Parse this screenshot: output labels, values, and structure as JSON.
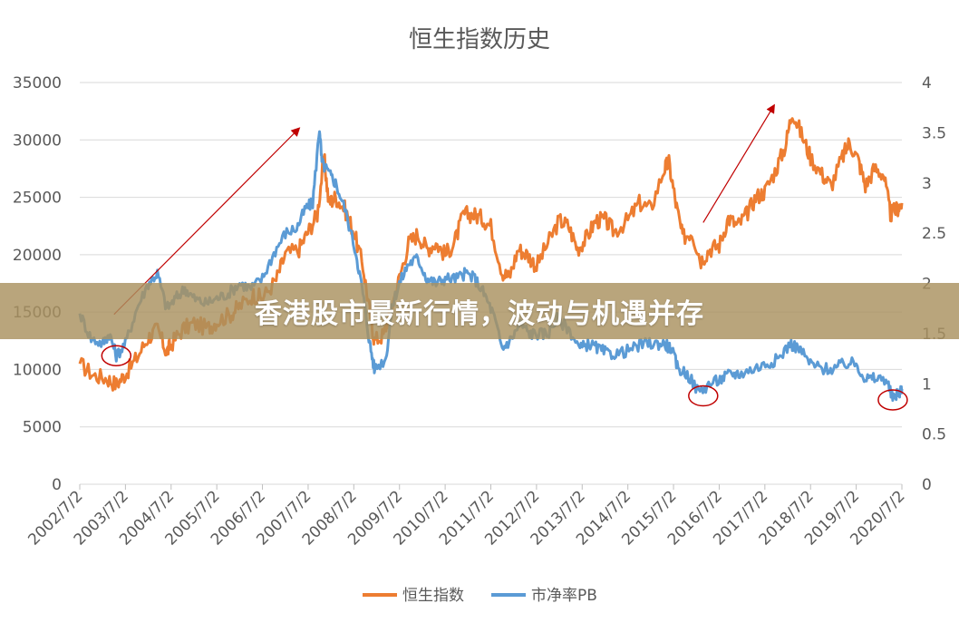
{
  "banner": {
    "text": "香港股市最新行情，波动与机遇并存"
  },
  "colors": {
    "hsi": "#ED7D31",
    "pb": "#5B9BD5",
    "annotation": "#C00000",
    "grid": "#D9D9D9"
  },
  "chart_data": {
    "type": "line",
    "title": "恒生指数历史",
    "x_labels": [
      "2002/7/2",
      "2003/7/2",
      "2004/7/2",
      "2005/7/2",
      "2006/7/2",
      "2007/7/2",
      "2008/7/2",
      "2009/7/2",
      "2010/7/2",
      "2011/7/2",
      "2012/7/2",
      "2013/7/2",
      "2014/7/2",
      "2015/7/2",
      "2016/7/2",
      "2017/7/2",
      "2018/7/2",
      "2019/7/2",
      "2020/7/2"
    ],
    "y_left": {
      "ticks": [
        "0",
        "5000",
        "10000",
        "15000",
        "20000",
        "25000",
        "30000",
        "35000"
      ],
      "min": 0,
      "max": 35000
    },
    "y_right": {
      "ticks": [
        "0",
        "0.5",
        "1",
        "1.5",
        "2",
        "2.5",
        "3",
        "3.5",
        "4"
      ],
      "min": 0,
      "max": 4
    },
    "legend_position": "bottom",
    "grid": true,
    "series": [
      {
        "name": "恒生指数",
        "axis": "left",
        "color": "#ED7D31",
        "points": [
          [
            2002.5,
            10500
          ],
          [
            2002.8,
            9500
          ],
          [
            2003.1,
            9200
          ],
          [
            2003.3,
            8700
          ],
          [
            2003.5,
            9600
          ],
          [
            2003.75,
            11000
          ],
          [
            2004.0,
            12800
          ],
          [
            2004.2,
            13500
          ],
          [
            2004.4,
            11500
          ],
          [
            2004.5,
            12200
          ],
          [
            2004.75,
            13500
          ],
          [
            2005.0,
            14000
          ],
          [
            2005.3,
            13600
          ],
          [
            2005.5,
            14200
          ],
          [
            2005.8,
            14800
          ],
          [
            2006.0,
            15500
          ],
          [
            2006.3,
            16500
          ],
          [
            2006.5,
            16200
          ],
          [
            2006.8,
            17800
          ],
          [
            2007.0,
            20000
          ],
          [
            2007.3,
            20500
          ],
          [
            2007.5,
            22000
          ],
          [
            2007.7,
            23500
          ],
          [
            2007.85,
            28500
          ],
          [
            2007.95,
            24500
          ],
          [
            2008.1,
            25000
          ],
          [
            2008.3,
            24000
          ],
          [
            2008.5,
            22000
          ],
          [
            2008.7,
            19000
          ],
          [
            2008.85,
            15000
          ],
          [
            2008.95,
            12500
          ],
          [
            2009.15,
            13000
          ],
          [
            2009.3,
            15000
          ],
          [
            2009.5,
            18000
          ],
          [
            2009.7,
            21000
          ],
          [
            2009.9,
            21800
          ],
          [
            2010.1,
            20500
          ],
          [
            2010.3,
            21000
          ],
          [
            2010.5,
            20000
          ],
          [
            2010.7,
            21000
          ],
          [
            2010.9,
            23500
          ],
          [
            2011.1,
            23500
          ],
          [
            2011.3,
            23200
          ],
          [
            2011.5,
            22500
          ],
          [
            2011.75,
            18500
          ],
          [
            2011.9,
            18000
          ],
          [
            2012.1,
            20500
          ],
          [
            2012.3,
            20000
          ],
          [
            2012.5,
            19000
          ],
          [
            2012.75,
            21000
          ],
          [
            2013.0,
            23000
          ],
          [
            2013.2,
            22500
          ],
          [
            2013.4,
            20500
          ],
          [
            2013.6,
            21500
          ],
          [
            2013.8,
            23000
          ],
          [
            2014.0,
            23000
          ],
          [
            2014.2,
            22000
          ],
          [
            2014.5,
            23000
          ],
          [
            2014.75,
            24500
          ],
          [
            2015.0,
            24000
          ],
          [
            2015.3,
            27500
          ],
          [
            2015.4,
            28000
          ],
          [
            2015.55,
            24500
          ],
          [
            2015.7,
            21500
          ],
          [
            2015.9,
            22000
          ],
          [
            2016.1,
            19500
          ],
          [
            2016.3,
            20500
          ],
          [
            2016.5,
            20800
          ],
          [
            2016.7,
            23200
          ],
          [
            2016.9,
            22500
          ],
          [
            2017.1,
            23500
          ],
          [
            2017.3,
            25000
          ],
          [
            2017.5,
            25500
          ],
          [
            2017.75,
            27500
          ],
          [
            2017.95,
            29500
          ],
          [
            2018.1,
            32500
          ],
          [
            2018.3,
            30500
          ],
          [
            2018.5,
            28500
          ],
          [
            2018.75,
            27000
          ],
          [
            2018.95,
            26000
          ],
          [
            2019.2,
            28500
          ],
          [
            2019.35,
            29800
          ],
          [
            2019.55,
            28200
          ],
          [
            2019.7,
            26000
          ],
          [
            2019.9,
            27500
          ],
          [
            2020.1,
            27000
          ],
          [
            2020.25,
            23500
          ],
          [
            2020.4,
            24000
          ],
          [
            2020.5,
            24500
          ]
        ]
      },
      {
        "name": "市净率PB",
        "axis": "right",
        "color": "#5B9BD5",
        "points": [
          [
            2002.5,
            1.7
          ],
          [
            2002.75,
            1.45
          ],
          [
            2003.0,
            1.4
          ],
          [
            2003.15,
            1.5
          ],
          [
            2003.3,
            1.28
          ],
          [
            2003.5,
            1.4
          ],
          [
            2003.75,
            1.75
          ],
          [
            2004.0,
            2.0
          ],
          [
            2004.2,
            2.1
          ],
          [
            2004.4,
            1.75
          ],
          [
            2004.6,
            1.85
          ],
          [
            2004.8,
            1.95
          ],
          [
            2005.0,
            1.85
          ],
          [
            2005.25,
            1.8
          ],
          [
            2005.5,
            1.85
          ],
          [
            2005.75,
            1.9
          ],
          [
            2006.0,
            2.0
          ],
          [
            2006.25,
            1.95
          ],
          [
            2006.5,
            2.05
          ],
          [
            2006.75,
            2.3
          ],
          [
            2007.0,
            2.5
          ],
          [
            2007.25,
            2.55
          ],
          [
            2007.45,
            2.75
          ],
          [
            2007.6,
            2.8
          ],
          [
            2007.75,
            3.55
          ],
          [
            2007.8,
            3.2
          ],
          [
            2007.95,
            3.1
          ],
          [
            2008.1,
            3.0
          ],
          [
            2008.3,
            2.75
          ],
          [
            2008.55,
            2.3
          ],
          [
            2008.7,
            1.9
          ],
          [
            2008.85,
            1.4
          ],
          [
            2008.95,
            1.15
          ],
          [
            2009.2,
            1.25
          ],
          [
            2009.35,
            1.8
          ],
          [
            2009.5,
            2.0
          ],
          [
            2009.7,
            2.2
          ],
          [
            2009.9,
            2.25
          ],
          [
            2010.1,
            2.05
          ],
          [
            2010.3,
            2.0
          ],
          [
            2010.5,
            2.05
          ],
          [
            2010.75,
            2.05
          ],
          [
            2010.95,
            2.1
          ],
          [
            2011.15,
            2.05
          ],
          [
            2011.35,
            1.9
          ],
          [
            2011.55,
            1.7
          ],
          [
            2011.75,
            1.35
          ],
          [
            2011.95,
            1.45
          ],
          [
            2012.15,
            1.6
          ],
          [
            2012.35,
            1.5
          ],
          [
            2012.55,
            1.5
          ],
          [
            2012.75,
            1.5
          ],
          [
            2012.95,
            1.65
          ],
          [
            2013.2,
            1.55
          ],
          [
            2013.45,
            1.35
          ],
          [
            2013.65,
            1.4
          ],
          [
            2013.85,
            1.35
          ],
          [
            2014.05,
            1.3
          ],
          [
            2014.3,
            1.3
          ],
          [
            2014.6,
            1.35
          ],
          [
            2014.85,
            1.4
          ],
          [
            2015.1,
            1.4
          ],
          [
            2015.3,
            1.4
          ],
          [
            2015.45,
            1.35
          ],
          [
            2015.6,
            1.15
          ],
          [
            2015.8,
            1.1
          ],
          [
            2016.05,
            0.92
          ],
          [
            2016.3,
            1.0
          ],
          [
            2016.55,
            1.05
          ],
          [
            2016.75,
            1.1
          ],
          [
            2016.95,
            1.1
          ],
          [
            2017.25,
            1.15
          ],
          [
            2017.55,
            1.2
          ],
          [
            2017.8,
            1.25
          ],
          [
            2018.05,
            1.4
          ],
          [
            2018.25,
            1.35
          ],
          [
            2018.5,
            1.2
          ],
          [
            2018.75,
            1.15
          ],
          [
            2019.0,
            1.15
          ],
          [
            2019.25,
            1.2
          ],
          [
            2019.5,
            1.2
          ],
          [
            2019.7,
            1.05
          ],
          [
            2019.9,
            1.05
          ],
          [
            2020.15,
            1.05
          ],
          [
            2020.3,
            0.85
          ],
          [
            2020.45,
            0.92
          ],
          [
            2020.5,
            0.95
          ]
        ]
      }
    ]
  }
}
